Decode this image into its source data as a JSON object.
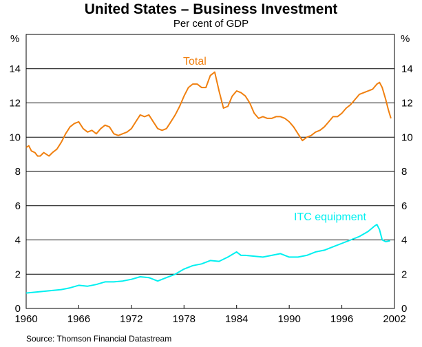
{
  "chart_data": {
    "type": "line",
    "title": "United States – Business Investment",
    "subtitle": "Per cent of GDP",
    "ylabel_left": "%",
    "ylabel_right": "%",
    "xlim": [
      1960,
      2002
    ],
    "ylim": [
      0,
      16
    ],
    "yticks": [
      0,
      2,
      4,
      6,
      8,
      10,
      12,
      14
    ],
    "xticks": [
      "1960",
      "1966",
      "1972",
      "1978",
      "1984",
      "1990",
      "1996",
      "2002"
    ],
    "grid": true,
    "source": "Source: Thomson Financial Datastream",
    "series": [
      {
        "name": "Total",
        "color": "#f08010",
        "x": [
          1960.0,
          1960.3,
          1960.6,
          1961.0,
          1961.3,
          1961.6,
          1962.0,
          1962.3,
          1962.6,
          1963.0,
          1963.5,
          1964.0,
          1964.5,
          1965.0,
          1965.5,
          1966.0,
          1966.5,
          1967.0,
          1967.5,
          1968.0,
          1968.5,
          1969.0,
          1969.5,
          1970.0,
          1970.5,
          1971.0,
          1971.5,
          1972.0,
          1972.5,
          1973.0,
          1973.5,
          1974.0,
          1974.5,
          1975.0,
          1975.5,
          1976.0,
          1976.5,
          1977.0,
          1977.5,
          1978.0,
          1978.5,
          1979.0,
          1979.5,
          1980.0,
          1980.5,
          1981.0,
          1981.5,
          1982.0,
          1982.5,
          1983.0,
          1983.5,
          1984.0,
          1984.5,
          1985.0,
          1985.5,
          1986.0,
          1986.5,
          1987.0,
          1987.5,
          1988.0,
          1988.5,
          1989.0,
          1989.5,
          1990.0,
          1990.5,
          1991.0,
          1991.5,
          1992.0,
          1992.5,
          1993.0,
          1993.5,
          1994.0,
          1994.5,
          1995.0,
          1995.5,
          1996.0,
          1996.5,
          1997.0,
          1997.5,
          1998.0,
          1998.5,
          1999.0,
          1999.5,
          2000.0,
          2000.3,
          2000.6,
          2001.0,
          2001.3,
          2001.6
        ],
        "values": [
          9.4,
          9.5,
          9.2,
          9.1,
          8.9,
          8.9,
          9.1,
          9.0,
          8.9,
          9.1,
          9.3,
          9.7,
          10.2,
          10.6,
          10.8,
          10.9,
          10.5,
          10.3,
          10.4,
          10.2,
          10.5,
          10.7,
          10.6,
          10.2,
          10.1,
          10.2,
          10.3,
          10.5,
          10.9,
          11.3,
          11.2,
          11.3,
          10.9,
          10.5,
          10.4,
          10.5,
          10.9,
          11.3,
          11.8,
          12.4,
          12.9,
          13.1,
          13.1,
          12.9,
          12.9,
          13.6,
          13.8,
          12.7,
          11.7,
          11.8,
          12.4,
          12.7,
          12.6,
          12.4,
          12.0,
          11.4,
          11.1,
          11.2,
          11.1,
          11.1,
          11.2,
          11.2,
          11.1,
          10.9,
          10.6,
          10.2,
          9.8,
          10.0,
          10.1,
          10.3,
          10.4,
          10.6,
          10.9,
          11.2,
          11.2,
          11.4,
          11.7,
          11.9,
          12.2,
          12.5,
          12.6,
          12.7,
          12.8,
          13.1,
          13.2,
          12.9,
          12.2,
          11.6,
          11.1
        ]
      },
      {
        "name": "ITC equipment",
        "color": "#00f0f0",
        "x": [
          1960.0,
          1961.0,
          1962.0,
          1963.0,
          1964.0,
          1965.0,
          1966.0,
          1967.0,
          1968.0,
          1969.0,
          1970.0,
          1971.0,
          1972.0,
          1973.0,
          1974.0,
          1975.0,
          1976.0,
          1977.0,
          1978.0,
          1979.0,
          1980.0,
          1981.0,
          1982.0,
          1983.0,
          1984.0,
          1984.5,
          1985.0,
          1986.0,
          1987.0,
          1988.0,
          1989.0,
          1990.0,
          1991.0,
          1992.0,
          1993.0,
          1994.0,
          1995.0,
          1996.0,
          1997.0,
          1998.0,
          1999.0,
          1999.7,
          2000.0,
          2000.3,
          2000.6,
          2001.0,
          2001.5
        ],
        "values": [
          0.9,
          0.95,
          1.0,
          1.05,
          1.1,
          1.2,
          1.35,
          1.3,
          1.4,
          1.55,
          1.55,
          1.6,
          1.7,
          1.85,
          1.8,
          1.6,
          1.8,
          2.0,
          2.3,
          2.5,
          2.6,
          2.8,
          2.75,
          3.0,
          3.3,
          3.1,
          3.1,
          3.05,
          3.0,
          3.1,
          3.2,
          3.0,
          3.0,
          3.1,
          3.3,
          3.4,
          3.6,
          3.8,
          4.0,
          4.2,
          4.5,
          4.8,
          4.9,
          4.6,
          4.0,
          3.9,
          3.95
        ]
      }
    ]
  }
}
